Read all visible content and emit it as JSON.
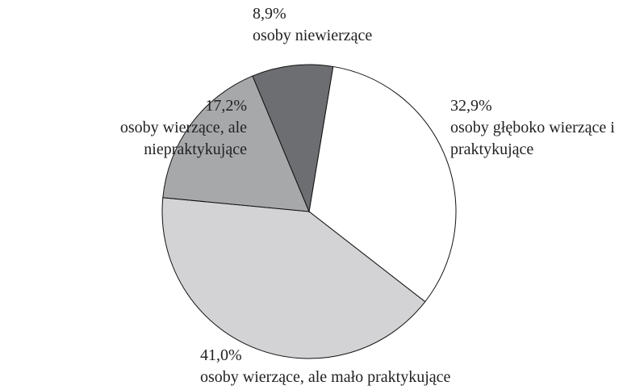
{
  "chart_data": {
    "type": "pie",
    "categories": [
      "osoby głęboko wierzące i praktykujące",
      "osoby wierzące, ale mało praktykujące",
      "osoby wierzące, ale niepraktykujące",
      "osoby niewierzące"
    ],
    "values": [
      32.9,
      41.0,
      17.2,
      8.9
    ],
    "value_labels": [
      "32,9%",
      "41,0%",
      "17,2%",
      "8,9%"
    ],
    "colors": [
      "#ffffff",
      "#d3d3d5",
      "#a7a8aa",
      "#6d6e71"
    ]
  }
}
